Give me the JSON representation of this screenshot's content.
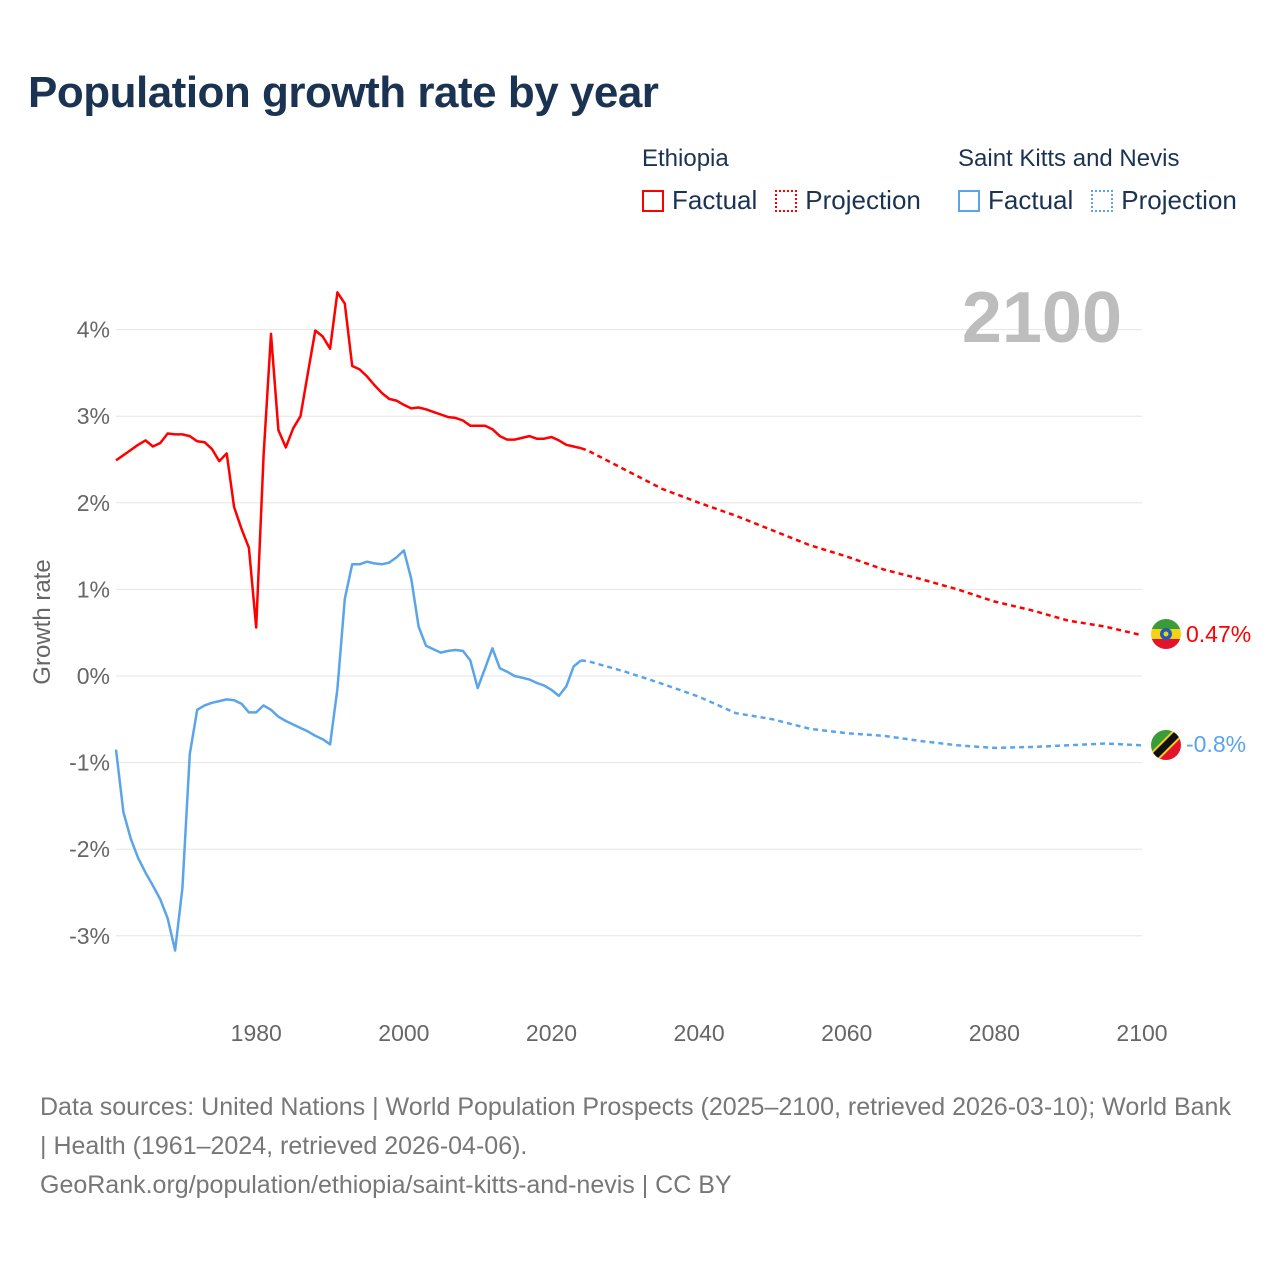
{
  "title": "Population growth rate by year",
  "legend": {
    "groups": [
      {
        "name": "Ethiopia",
        "color": "#ff0000",
        "factual": "Factual",
        "projection": "Projection"
      },
      {
        "name": "Saint Kitts and Nevis",
        "color": "#5aa5ea",
        "factual": "Factual",
        "projection": "Projection"
      }
    ]
  },
  "year_label": "2100",
  "footer": {
    "line1": "Data sources: United Nations | World Population Prospects (2025–2100, retrieved 2026-03-10); World Bank | Health (1961–2024, retrieved 2026-04-06).",
    "line2": "GeoRank.org/population/ethiopia/saint-kitts-and-nevis | CC BY"
  },
  "chart_data": {
    "type": "line",
    "title": "Population growth rate by year",
    "xlabel": "",
    "ylabel": "Growth rate",
    "xlim": [
      1961,
      2100
    ],
    "ylim": [
      -3.8,
      4.6
    ],
    "xticks": [
      1980,
      2000,
      2020,
      2040,
      2060,
      2080,
      2100
    ],
    "yticks": [
      -3,
      -2,
      -1,
      0,
      1,
      2,
      3,
      4
    ],
    "ytick_labels": [
      "-3%",
      "-2%",
      "-1%",
      "0%",
      "1%",
      "2%",
      "3%",
      "4%"
    ],
    "grid": true,
    "legend_position": "top-right",
    "series": [
      {
        "name": "Ethiopia",
        "color": "#ff0000",
        "end_label": "0.47%",
        "factual": {
          "x_start": 1961,
          "values": [
            2.49,
            2.55,
            2.61,
            2.67,
            2.72,
            2.65,
            2.69,
            2.8,
            2.79,
            2.79,
            2.77,
            2.71,
            2.7,
            2.62,
            2.48,
            2.57,
            1.95,
            1.7,
            1.48,
            0.56,
            2.55,
            3.95,
            2.84,
            2.64,
            2.86,
            3.0,
            3.5,
            3.99,
            3.92,
            3.78,
            4.43,
            4.3,
            3.58,
            3.54,
            3.46,
            3.36,
            3.27,
            3.2,
            3.18,
            3.13,
            3.09,
            3.1,
            3.08,
            3.05,
            3.02,
            2.99,
            2.98,
            2.95,
            2.89,
            2.89,
            2.89,
            2.85,
            2.77,
            2.73,
            2.73,
            2.75,
            2.77,
            2.74,
            2.74,
            2.76,
            2.72,
            2.67,
            2.65,
            2.63
          ]
        },
        "projection": {
          "x": [
            2024,
            2025,
            2030,
            2035,
            2040,
            2045,
            2050,
            2055,
            2060,
            2065,
            2070,
            2075,
            2080,
            2085,
            2090,
            2095,
            2100
          ],
          "values": [
            2.63,
            2.6,
            2.38,
            2.16,
            2.0,
            1.85,
            1.68,
            1.51,
            1.38,
            1.23,
            1.12,
            1.0,
            0.86,
            0.76,
            0.64,
            0.57,
            0.47
          ]
        }
      },
      {
        "name": "Saint Kitts and Nevis",
        "color": "#5aa5ea",
        "end_label": "-0.8%",
        "factual": {
          "x_start": 1961,
          "values": [
            -0.85,
            -1.57,
            -1.88,
            -2.1,
            -2.27,
            -2.42,
            -2.58,
            -2.8,
            -3.17,
            -2.45,
            -0.9,
            -0.39,
            -0.34,
            -0.31,
            -0.29,
            -0.27,
            -0.28,
            -0.32,
            -0.42,
            -0.42,
            -0.34,
            -0.39,
            -0.47,
            -0.52,
            -0.56,
            -0.6,
            -0.64,
            -0.69,
            -0.73,
            -0.79,
            -0.15,
            0.89,
            1.29,
            1.29,
            1.32,
            1.3,
            1.29,
            1.31,
            1.37,
            1.45,
            1.12,
            0.57,
            0.35,
            0.31,
            0.27,
            0.29,
            0.3,
            0.29,
            0.18,
            -0.14,
            0.09,
            0.32,
            0.09,
            0.05,
            0.0,
            -0.02,
            -0.04,
            -0.08,
            -0.11,
            -0.16,
            -0.23,
            -0.12,
            0.11,
            0.18
          ]
        },
        "projection": {
          "x": [
            2024,
            2025,
            2030,
            2035,
            2040,
            2045,
            2050,
            2055,
            2060,
            2065,
            2070,
            2075,
            2080,
            2085,
            2090,
            2095,
            2100
          ],
          "values": [
            0.18,
            0.17,
            0.05,
            -0.09,
            -0.24,
            -0.43,
            -0.5,
            -0.61,
            -0.66,
            -0.69,
            -0.75,
            -0.8,
            -0.83,
            -0.82,
            -0.8,
            -0.78,
            -0.8
          ]
        }
      }
    ]
  }
}
